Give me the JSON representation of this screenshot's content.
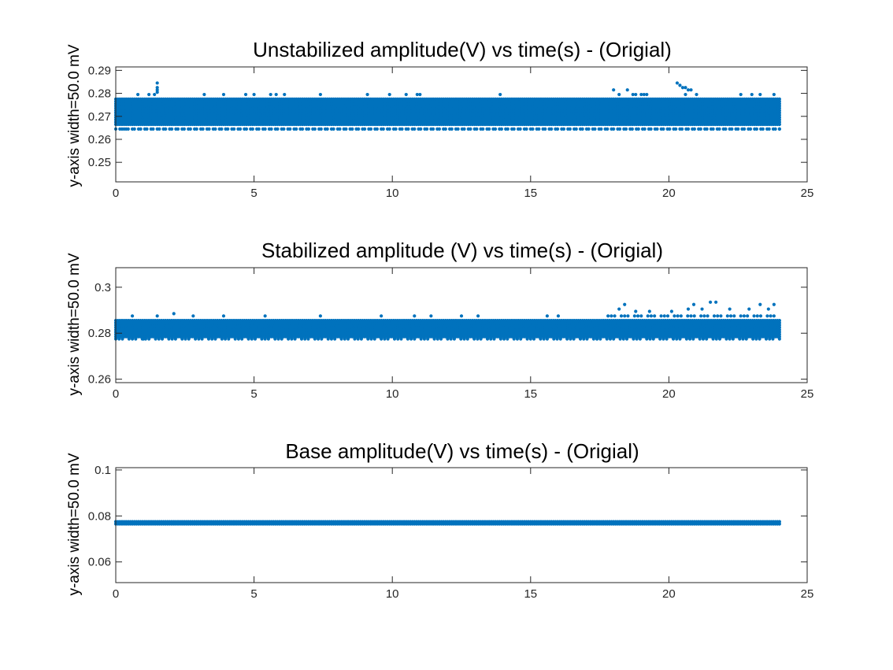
{
  "chart_data": [
    {
      "type": "scatter",
      "title": "Unstabilized amplitude(V) vs time(s) - (Origial)",
      "xlabel": "",
      "ylabel": "y-axis width=50.0 mV",
      "xlim": [
        0,
        25
      ],
      "ylim": [
        0.2415,
        0.2915
      ],
      "xticks": [
        0,
        5,
        10,
        15,
        20,
        25
      ],
      "yticks": [
        0.25,
        0.26,
        0.27,
        0.28,
        0.29
      ],
      "ytick_labels": [
        "0.25",
        "0.26",
        "0.27",
        "0.28",
        "0.29"
      ],
      "series_color": "#0072BD",
      "x_range": [
        0,
        24
      ],
      "levels": [
        0.2645,
        0.2665,
        0.2675,
        0.2685,
        0.2695,
        0.2705,
        0.2715,
        0.2725,
        0.2735,
        0.2745,
        0.2755,
        0.2765,
        0.2775
      ],
      "sparse_levels": [
        0.2645
      ],
      "outliers": [
        {
          "x": 0.3,
          "y": 0.2645
        },
        {
          "x": 0.8,
          "y": 0.2795
        },
        {
          "x": 1.2,
          "y": 0.2795
        },
        {
          "x": 1.4,
          "y": 0.2795
        },
        {
          "x": 1.5,
          "y": 0.2805
        },
        {
          "x": 1.5,
          "y": 0.2815
        },
        {
          "x": 1.5,
          "y": 0.2845
        },
        {
          "x": 1.5,
          "y": 0.2825
        },
        {
          "x": 3.2,
          "y": 0.2795
        },
        {
          "x": 3.9,
          "y": 0.2795
        },
        {
          "x": 4.7,
          "y": 0.2795
        },
        {
          "x": 5.0,
          "y": 0.2795
        },
        {
          "x": 5.6,
          "y": 0.2795
        },
        {
          "x": 5.8,
          "y": 0.2795
        },
        {
          "x": 6.1,
          "y": 0.2795
        },
        {
          "x": 7.4,
          "y": 0.2795
        },
        {
          "x": 9.1,
          "y": 0.2795
        },
        {
          "x": 9.9,
          "y": 0.2795
        },
        {
          "x": 10.5,
          "y": 0.2795
        },
        {
          "x": 10.9,
          "y": 0.2795
        },
        {
          "x": 11.0,
          "y": 0.2795
        },
        {
          "x": 13.9,
          "y": 0.2795
        },
        {
          "x": 18.0,
          "y": 0.2815
        },
        {
          "x": 18.2,
          "y": 0.2795
        },
        {
          "x": 18.5,
          "y": 0.2815
        },
        {
          "x": 18.7,
          "y": 0.2795
        },
        {
          "x": 18.8,
          "y": 0.2795
        },
        {
          "x": 19.0,
          "y": 0.2795
        },
        {
          "x": 19.1,
          "y": 0.2795
        },
        {
          "x": 19.2,
          "y": 0.2795
        },
        {
          "x": 20.3,
          "y": 0.2845
        },
        {
          "x": 20.4,
          "y": 0.2835
        },
        {
          "x": 20.5,
          "y": 0.2825
        },
        {
          "x": 20.6,
          "y": 0.2825
        },
        {
          "x": 20.7,
          "y": 0.2815
        },
        {
          "x": 20.8,
          "y": 0.2815
        },
        {
          "x": 20.6,
          "y": 0.2795
        },
        {
          "x": 21.0,
          "y": 0.2795
        },
        {
          "x": 22.6,
          "y": 0.2795
        },
        {
          "x": 23.0,
          "y": 0.2795
        },
        {
          "x": 23.3,
          "y": 0.2795
        },
        {
          "x": 23.8,
          "y": 0.2795
        },
        {
          "x": 24.0,
          "y": 0.2645
        }
      ]
    },
    {
      "type": "scatter",
      "title": "Stabilized amplitude (V) vs time(s) - (Origial)",
      "xlabel": "",
      "ylabel": "y-axis width=50.0 mV",
      "xlim": [
        0,
        25
      ],
      "ylim": [
        0.2585,
        0.3085
      ],
      "xticks": [
        0,
        5,
        10,
        15,
        20,
        25
      ],
      "yticks": [
        0.26,
        0.28,
        0.3
      ],
      "ytick_labels": [
        "0.26",
        "0.28",
        "0.3"
      ],
      "series_color": "#0072BD",
      "x_range": [
        0,
        24
      ],
      "levels": [
        0.2785,
        0.2795,
        0.2805,
        0.2815,
        0.2825,
        0.2835,
        0.2845,
        0.2855
      ],
      "sparse_levels": [],
      "outliers": [
        {
          "x": 0.6,
          "y": 0.2875
        },
        {
          "x": 1.0,
          "y": 0.2775
        },
        {
          "x": 1.5,
          "y": 0.2875
        },
        {
          "x": 2.1,
          "y": 0.2885
        },
        {
          "x": 2.8,
          "y": 0.2875
        },
        {
          "x": 3.9,
          "y": 0.2875
        },
        {
          "x": 5.4,
          "y": 0.2875
        },
        {
          "x": 7.4,
          "y": 0.2875
        },
        {
          "x": 9.6,
          "y": 0.2875
        },
        {
          "x": 10.8,
          "y": 0.2875
        },
        {
          "x": 11.4,
          "y": 0.2875
        },
        {
          "x": 12.5,
          "y": 0.2875
        },
        {
          "x": 13.1,
          "y": 0.2875
        },
        {
          "x": 15.6,
          "y": 0.2875
        },
        {
          "x": 16.0,
          "y": 0.2875
        },
        {
          "x": 17.4,
          "y": 0.2775
        },
        {
          "x": 18.2,
          "y": 0.2905
        },
        {
          "x": 18.4,
          "y": 0.2925
        },
        {
          "x": 18.8,
          "y": 0.2895
        },
        {
          "x": 19.3,
          "y": 0.2895
        },
        {
          "x": 20.1,
          "y": 0.2895
        },
        {
          "x": 20.7,
          "y": 0.2905
        },
        {
          "x": 20.9,
          "y": 0.2925
        },
        {
          "x": 21.2,
          "y": 0.2905
        },
        {
          "x": 21.5,
          "y": 0.2935
        },
        {
          "x": 21.7,
          "y": 0.2935
        },
        {
          "x": 22.2,
          "y": 0.2905
        },
        {
          "x": 22.9,
          "y": 0.2905
        },
        {
          "x": 23.3,
          "y": 0.2925
        },
        {
          "x": 23.6,
          "y": 0.2905
        },
        {
          "x": 23.8,
          "y": 0.2925
        }
      ],
      "upper_band": {
        "x_from": 17.8,
        "x_to": 24,
        "y": 0.2875
      },
      "lower_band": {
        "x_from": 0,
        "x_to": 24,
        "y": 0.2775
      }
    },
    {
      "type": "scatter",
      "title": "Base amplitude(V) vs time(s) - (Origial)",
      "xlabel": "",
      "ylabel": "y-axis width=50.0 mV",
      "xlim": [
        0,
        25
      ],
      "ylim": [
        0.051,
        0.101
      ],
      "xticks": [
        0,
        5,
        10,
        15,
        20,
        25
      ],
      "yticks": [
        0.06,
        0.08,
        0.1
      ],
      "ytick_labels": [
        "0.06",
        "0.08",
        "0.1"
      ],
      "series_color": "#0072BD",
      "x_range": [
        0,
        24
      ],
      "levels": [
        0.0765,
        0.0775
      ],
      "sparse_levels": [],
      "outliers": []
    }
  ]
}
